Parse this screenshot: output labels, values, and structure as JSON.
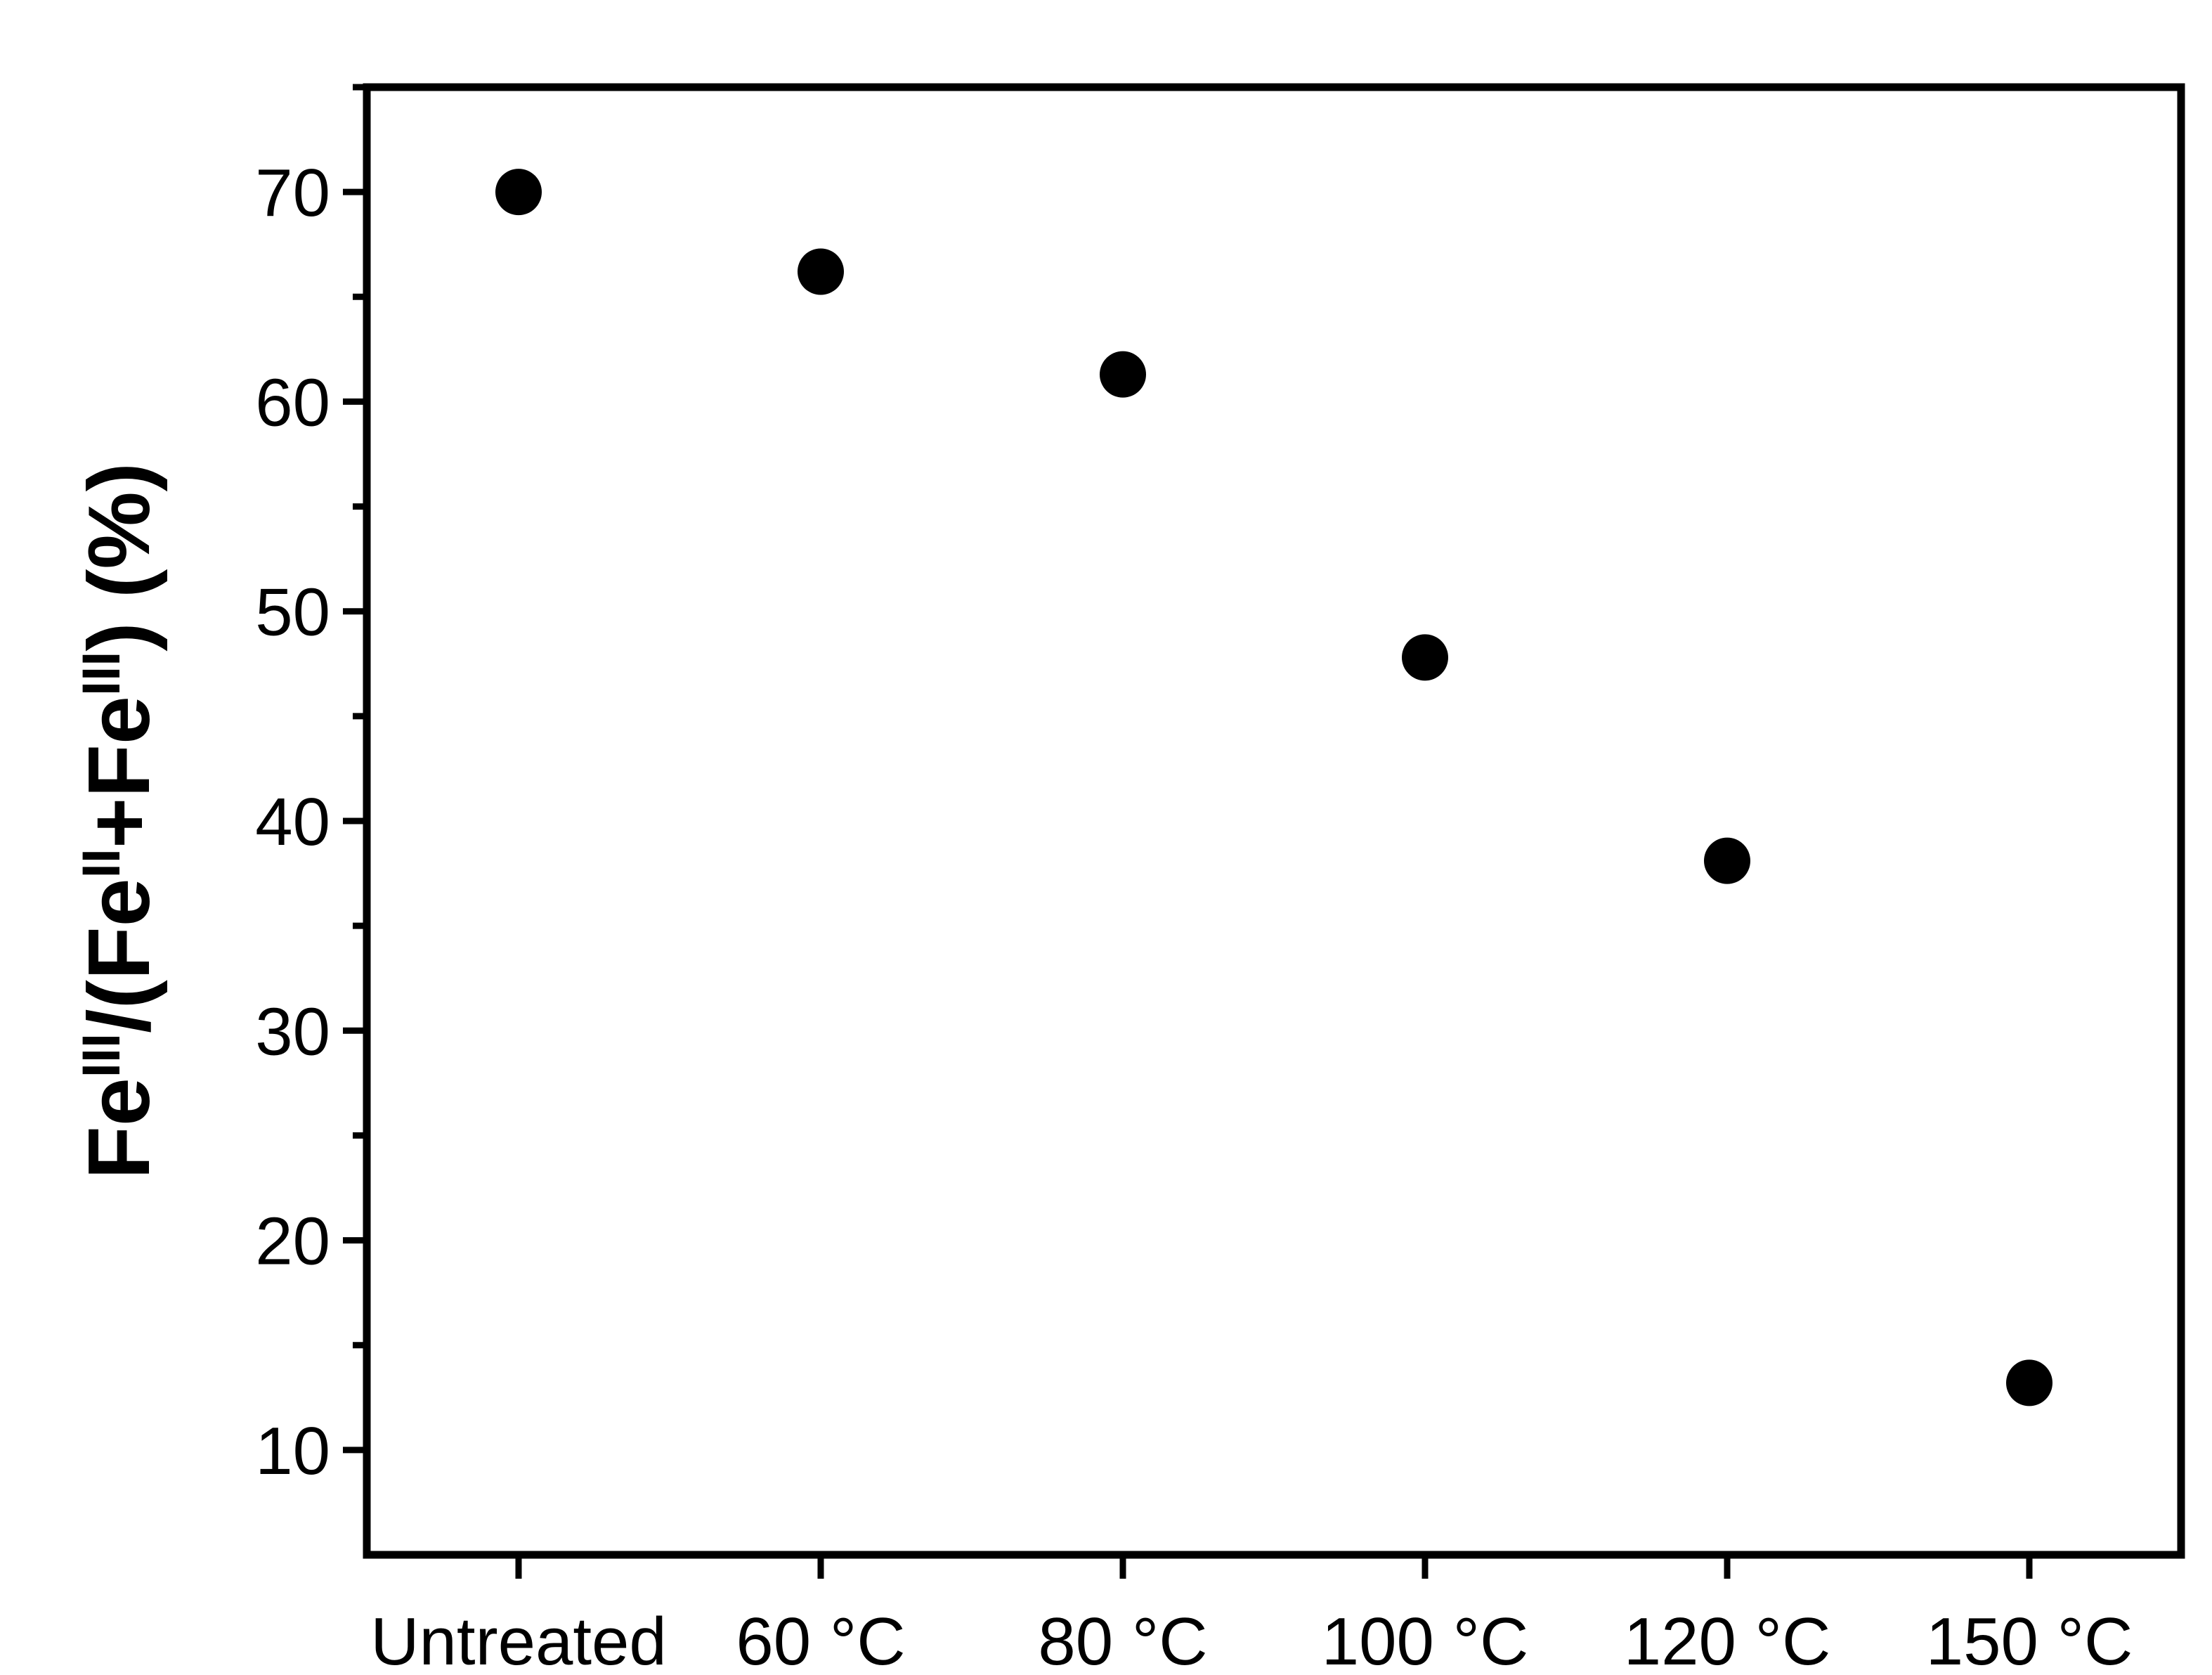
{
  "chart_data": {
    "type": "scatter",
    "title": "",
    "xlabel": "",
    "ylabel": {
      "parts": [
        {
          "text": "Fe",
          "sup": false
        },
        {
          "text": "III",
          "sup": true
        },
        {
          "text": "/(Fe",
          "sup": false
        },
        {
          "text": "II",
          "sup": true
        },
        {
          "text": "+Fe",
          "sup": false
        },
        {
          "text": "III",
          "sup": true
        },
        {
          "text": ") (%)",
          "sup": false
        }
      ]
    },
    "categories": [
      "Untreated",
      "60 °C",
      "80 °C",
      "100 °C",
      "120 °C",
      "150 °C"
    ],
    "values": [
      70.0,
      66.2,
      61.3,
      47.8,
      38.1,
      13.2
    ],
    "ylim": [
      5,
      75
    ],
    "yticks": [
      10,
      20,
      30,
      40,
      50,
      60,
      70
    ],
    "yminor_ticks": [
      15,
      25,
      35,
      45,
      55,
      65,
      75
    ],
    "grid": false,
    "legend": "none",
    "marker": "filled-circle",
    "colors": {
      "marker": "#000000",
      "axis": "#000000",
      "background": "#ffffff"
    }
  }
}
